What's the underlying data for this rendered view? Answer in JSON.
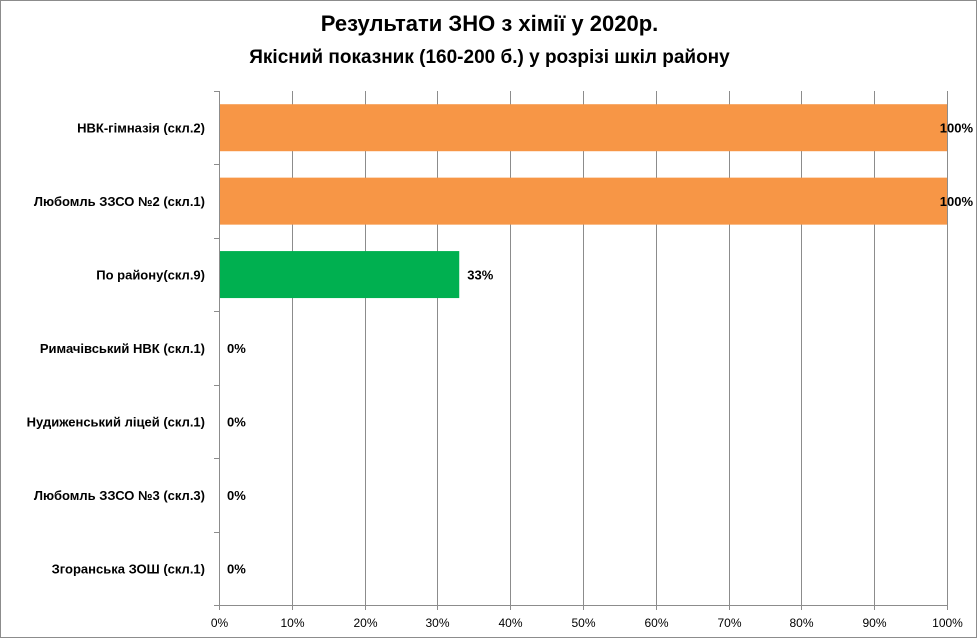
{
  "chart_data": {
    "type": "bar",
    "orientation": "horizontal",
    "title": "Результати  ЗНО з хімії у 2020р.",
    "subtitle": "Якісний показник (160-200  б.) у розрізі шкіл району",
    "categories": [
      "НВК-гімназія (скл.2)",
      "Любомль ЗЗСО №2 (скл.1)",
      "По району(скл.9)",
      "Римачівський НВК (скл.1)",
      "Нудиженський ліцей (скл.1)",
      "Любомль ЗЗСО №3 (скл.3)",
      "Згоранська ЗОШ (скл.1)"
    ],
    "values": [
      100,
      100,
      33,
      0,
      0,
      0,
      0
    ],
    "value_labels": [
      "100%",
      "100%",
      "33%",
      "0%",
      "0%",
      "0%",
      "0%"
    ],
    "bar_colors": [
      "#f79646",
      "#f79646",
      "#00b050",
      "#f79646",
      "#f79646",
      "#f79646",
      "#f79646"
    ],
    "xlim": [
      0,
      100
    ],
    "x_ticks": [
      0,
      10,
      20,
      30,
      40,
      50,
      60,
      70,
      80,
      90,
      100
    ],
    "x_tick_labels": [
      "0%",
      "10%",
      "20%",
      "30%",
      "40%",
      "50%",
      "60%",
      "70%",
      "80%",
      "90%",
      "100%"
    ],
    "grid": true,
    "legend": "none"
  },
  "colors": {
    "grid": "#8c8c8c",
    "axis": "#8c8c8c",
    "text": "#000000"
  }
}
